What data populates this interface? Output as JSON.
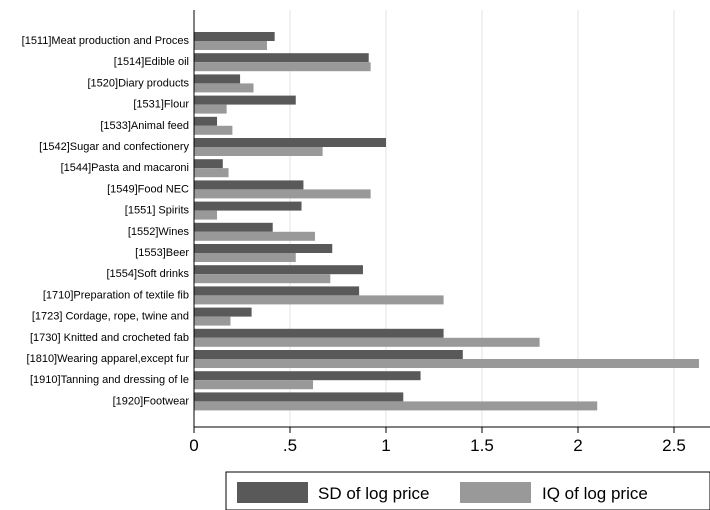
{
  "chart_data": {
    "type": "bar",
    "orientation": "horizontal",
    "categories": [
      "[1511]Meat production and Proces",
      "[1514]Edible oil",
      "[1520]Diary products",
      "[1531]Flour",
      "[1533]Animal feed",
      "[1542]Sugar and confectionery",
      "[1544]Pasta and macaroni",
      "[1549]Food NEC",
      "[1551] Spirits",
      "[1552]Wines",
      "[1553]Beer",
      "[1554]Soft drinks",
      "[1710]Preparation of textile fib",
      "[1723] Cordage, rope, twine and",
      "[1730] Knitted and crocheted fab",
      "[1810]Wearing apparel,except fur",
      "[1910]Tanning and dressing of le",
      "[1920]Footwear"
    ],
    "series": [
      {
        "name": "SD of log price",
        "color": "#595959",
        "values": [
          0.42,
          0.91,
          0.24,
          0.53,
          0.12,
          1.0,
          0.15,
          0.57,
          0.56,
          0.41,
          0.72,
          0.88,
          0.86,
          0.3,
          1.3,
          1.4,
          1.18,
          1.09
        ]
      },
      {
        "name": "IQ of log price",
        "color": "#999999",
        "values": [
          0.38,
          0.92,
          0.31,
          0.17,
          0.2,
          0.67,
          0.18,
          0.92,
          0.12,
          0.63,
          0.53,
          0.71,
          1.3,
          0.19,
          1.8,
          2.63,
          0.62,
          2.1
        ]
      }
    ],
    "xticks": [
      0,
      0.5,
      1,
      1.5,
      2,
      2.5
    ],
    "xtick_labels": [
      "0",
      ".5",
      "1",
      "1.5",
      "2",
      "2.5"
    ],
    "xlim": [
      0,
      2.7
    ],
    "grid": true,
    "legend": "bottom",
    "title": "",
    "xlabel": "",
    "ylabel": ""
  }
}
